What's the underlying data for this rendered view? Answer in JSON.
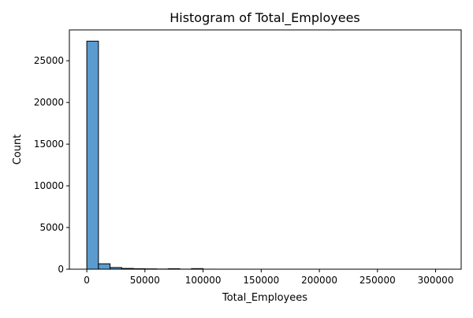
{
  "chart_data": {
    "type": "bar",
    "title": "Histogram of Total_Employees",
    "xlabel": "Total_Employees",
    "ylabel": "Count",
    "xlim": [
      -15000,
      322000
    ],
    "ylim": [
      0,
      28700
    ],
    "bar_color": "#5a9bd0",
    "edge_color": "#000000",
    "bin_width": 10000,
    "bins": [
      {
        "x0": 0,
        "count": 27350
      },
      {
        "x0": 10000,
        "count": 650
      },
      {
        "x0": 20000,
        "count": 200
      },
      {
        "x0": 30000,
        "count": 90
      },
      {
        "x0": 40000,
        "count": 60
      },
      {
        "x0": 50000,
        "count": 40
      },
      {
        "x0": 60000,
        "count": 20
      },
      {
        "x0": 70000,
        "count": 60
      },
      {
        "x0": 80000,
        "count": 10
      },
      {
        "x0": 90000,
        "count": 70
      },
      {
        "x0": 100000,
        "count": 5
      },
      {
        "x0": 110000,
        "count": 3
      },
      {
        "x0": 120000,
        "count": 2
      },
      {
        "x0": 130000,
        "count": 2
      },
      {
        "x0": 140000,
        "count": 1
      },
      {
        "x0": 150000,
        "count": 1
      },
      {
        "x0": 160000,
        "count": 1
      },
      {
        "x0": 170000,
        "count": 1
      },
      {
        "x0": 180000,
        "count": 1
      },
      {
        "x0": 190000,
        "count": 1
      },
      {
        "x0": 200000,
        "count": 1
      },
      {
        "x0": 210000,
        "count": 1
      },
      {
        "x0": 220000,
        "count": 1
      },
      {
        "x0": 230000,
        "count": 1
      },
      {
        "x0": 240000,
        "count": 1
      },
      {
        "x0": 250000,
        "count": 1
      },
      {
        "x0": 260000,
        "count": 1
      },
      {
        "x0": 270000,
        "count": 1
      },
      {
        "x0": 280000,
        "count": 1
      },
      {
        "x0": 290000,
        "count": 1
      },
      {
        "x0": 300000,
        "count": 1
      }
    ],
    "x_ticks": [
      {
        "value": 0,
        "label": "0"
      },
      {
        "value": 50000,
        "label": "50000"
      },
      {
        "value": 100000,
        "label": "100000"
      },
      {
        "value": 150000,
        "label": "150000"
      },
      {
        "value": 200000,
        "label": "200000"
      },
      {
        "value": 250000,
        "label": "250000"
      },
      {
        "value": 300000,
        "label": "300000"
      }
    ],
    "y_ticks": [
      {
        "value": 0,
        "label": "0"
      },
      {
        "value": 5000,
        "label": "5000"
      },
      {
        "value": 10000,
        "label": "10000"
      },
      {
        "value": 15000,
        "label": "15000"
      },
      {
        "value": 20000,
        "label": "20000"
      },
      {
        "value": 25000,
        "label": "25000"
      }
    ],
    "grid": false,
    "legend": "none"
  }
}
